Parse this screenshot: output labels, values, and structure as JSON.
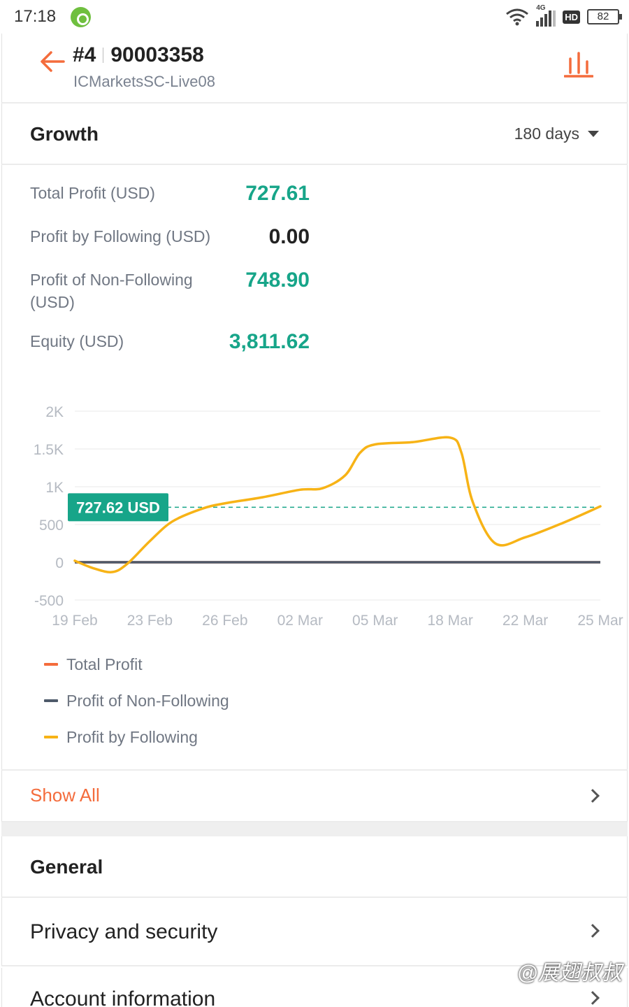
{
  "status_bar": {
    "time": "17:18",
    "network": "4G",
    "hd": "HD",
    "battery": "82"
  },
  "header": {
    "account_index": "#4",
    "account_number": "90003358",
    "server": "ICMarketsSC-Live08"
  },
  "growth": {
    "title": "Growth",
    "period": "180 days"
  },
  "stats": [
    {
      "label": "Total Profit (USD)",
      "value": "727.61"
    },
    {
      "label": "Profit by Following (USD)",
      "value": "0.00"
    },
    {
      "label": "Profit of Non-Following (USD)",
      "value": "748.90"
    },
    {
      "label": "Equity (USD)",
      "value": "3,811.62"
    }
  ],
  "chart_data": {
    "type": "line",
    "x": [
      "19 Feb",
      "23 Feb",
      "26 Feb",
      "02 Mar",
      "05 Mar",
      "18 Mar",
      "22 Mar",
      "25 Mar"
    ],
    "y_ticks": [
      "2K",
      "1.5K",
      "1K",
      "500",
      "0",
      "-500"
    ],
    "ylim": [
      -500,
      2000
    ],
    "marker_label": "727.62 USD",
    "marker_value": 727.62,
    "series": [
      {
        "name": "Total Profit",
        "color": "#f46c3c",
        "x": [
          0,
          7
        ],
        "values": [
          0,
          0
        ]
      },
      {
        "name": "Profit of Non-Following",
        "color": "#4e5a6a",
        "x": [
          0,
          7
        ],
        "values": [
          0,
          0
        ]
      },
      {
        "name": "Profit by Following",
        "color": "#f7b316",
        "x": [
          0,
          0.25,
          0.5,
          0.7,
          1.0,
          1.3,
          1.7,
          2.0,
          2.5,
          3.0,
          3.3,
          3.6,
          3.8,
          4.0,
          4.5,
          5.0,
          5.15,
          5.3,
          5.6,
          6.0,
          6.5,
          7.0
        ],
        "values": [
          20,
          -80,
          -130,
          -20,
          280,
          540,
          710,
          780,
          860,
          960,
          980,
          1150,
          1450,
          1560,
          1590,
          1650,
          1450,
          800,
          250,
          330,
          520,
          740
        ]
      }
    ]
  },
  "show_all": {
    "label": "Show All"
  },
  "general": {
    "title": "General",
    "items": [
      "Privacy and security",
      "Account information"
    ]
  },
  "watermark": "@展翅叔叔"
}
